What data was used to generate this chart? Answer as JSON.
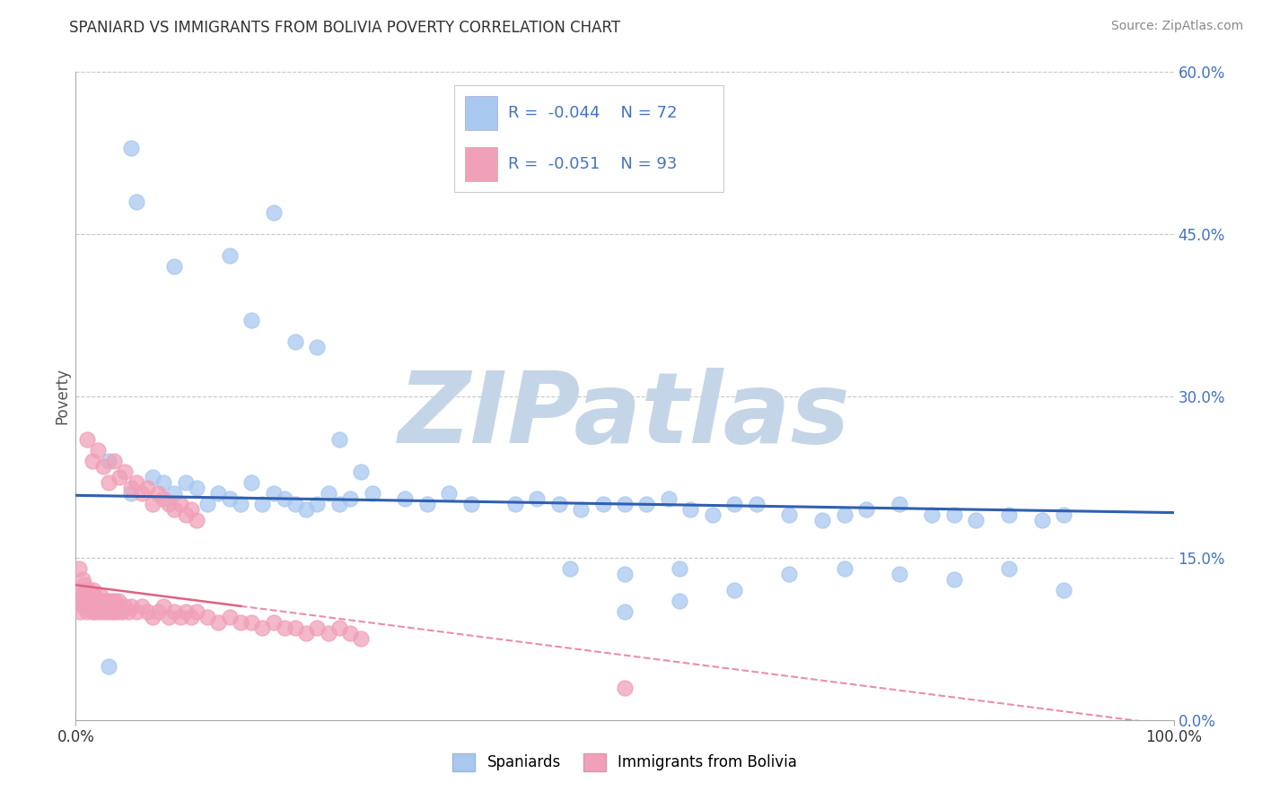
{
  "title": "SPANIARD VS IMMIGRANTS FROM BOLIVIA POVERTY CORRELATION CHART",
  "source": "Source: ZipAtlas.com",
  "ylabel": "Poverty",
  "xlim": [
    0,
    100
  ],
  "ylim": [
    0,
    60
  ],
  "yticks": [
    0,
    15,
    30,
    45,
    60
  ],
  "ytick_labels": [
    "0.0%",
    "15.0%",
    "30.0%",
    "45.0%",
    "60.0%"
  ],
  "xticks": [
    0,
    100
  ],
  "xtick_labels": [
    "0.0%",
    "100.0%"
  ],
  "background_color": "#ffffff",
  "grid_color": "#c8c8c8",
  "watermark_text": "ZIPatlas",
  "watermark_color": "#c5d5e8",
  "legend_label1": "Spaniards",
  "legend_label2": "Immigrants from Bolivia",
  "blue_color": "#a8c8f0",
  "pink_color": "#f0a0b8",
  "trend_blue": "#3060b0",
  "trend_pink": "#e06080",
  "blue_r": "-0.044",
  "blue_n": "72",
  "pink_r": "-0.051",
  "pink_n": "93",
  "blue_scatter_x": [
    5.0,
    5.5,
    9.0,
    14.0,
    16.0,
    18.0,
    20.0,
    22.0,
    24.0,
    26.0,
    3.0,
    5.0,
    7.0,
    8.0,
    9.0,
    10.0,
    11.0,
    12.0,
    13.0,
    14.0,
    15.0,
    16.0,
    17.0,
    18.0,
    19.0,
    20.0,
    21.0,
    22.0,
    23.0,
    24.0,
    25.0,
    27.0,
    30.0,
    32.0,
    34.0,
    36.0,
    40.0,
    42.0,
    44.0,
    46.0,
    48.0,
    50.0,
    52.0,
    54.0,
    56.0,
    58.0,
    60.0,
    62.0,
    65.0,
    68.0,
    70.0,
    72.0,
    75.0,
    78.0,
    80.0,
    82.0,
    85.0,
    88.0,
    90.0,
    45.0,
    50.0,
    55.0,
    60.0,
    65.0,
    70.0,
    75.0,
    80.0,
    85.0,
    90.0,
    50.0,
    55.0,
    3.0
  ],
  "blue_scatter_y": [
    53.0,
    48.0,
    42.0,
    43.0,
    37.0,
    47.0,
    35.0,
    34.5,
    26.0,
    23.0,
    24.0,
    21.0,
    22.5,
    22.0,
    21.0,
    22.0,
    21.5,
    20.0,
    21.0,
    20.5,
    20.0,
    22.0,
    20.0,
    21.0,
    20.5,
    20.0,
    19.5,
    20.0,
    21.0,
    20.0,
    20.5,
    21.0,
    20.5,
    20.0,
    21.0,
    20.0,
    20.0,
    20.5,
    20.0,
    19.5,
    20.0,
    20.0,
    20.0,
    20.5,
    19.5,
    19.0,
    20.0,
    20.0,
    19.0,
    18.5,
    19.0,
    19.5,
    20.0,
    19.0,
    19.0,
    18.5,
    19.0,
    18.5,
    19.0,
    14.0,
    13.5,
    14.0,
    12.0,
    13.5,
    14.0,
    13.5,
    13.0,
    14.0,
    12.0,
    10.0,
    11.0,
    5.0
  ],
  "pink_scatter_x": [
    0.1,
    0.2,
    0.3,
    0.4,
    0.5,
    0.6,
    0.7,
    0.8,
    0.9,
    1.0,
    1.1,
    1.2,
    1.3,
    1.4,
    1.5,
    1.6,
    1.7,
    1.8,
    1.9,
    2.0,
    2.1,
    2.2,
    2.3,
    2.4,
    2.5,
    2.6,
    2.7,
    2.8,
    2.9,
    3.0,
    3.1,
    3.2,
    3.3,
    3.4,
    3.5,
    3.6,
    3.7,
    3.8,
    3.9,
    4.0,
    4.2,
    4.5,
    4.8,
    5.0,
    5.5,
    6.0,
    6.5,
    7.0,
    7.5,
    8.0,
    8.5,
    9.0,
    9.5,
    10.0,
    10.5,
    11.0,
    12.0,
    13.0,
    14.0,
    15.0,
    16.0,
    17.0,
    18.0,
    19.0,
    20.0,
    21.0,
    22.0,
    23.0,
    24.0,
    25.0,
    26.0,
    1.0,
    1.5,
    2.0,
    2.5,
    3.0,
    3.5,
    4.0,
    4.5,
    5.0,
    5.5,
    6.0,
    6.5,
    7.0,
    7.5,
    8.0,
    8.5,
    9.0,
    9.5,
    10.0,
    10.5,
    11.0,
    50.0
  ],
  "pink_scatter_y": [
    12.0,
    11.0,
    14.0,
    10.0,
    11.5,
    13.0,
    10.5,
    12.5,
    11.0,
    10.0,
    12.0,
    11.5,
    10.5,
    11.0,
    10.0,
    12.0,
    11.5,
    10.0,
    11.0,
    10.5,
    11.0,
    10.0,
    11.5,
    10.5,
    11.0,
    10.0,
    11.0,
    10.5,
    10.0,
    11.0,
    10.5,
    10.0,
    11.0,
    10.5,
    10.0,
    11.0,
    10.5,
    10.0,
    11.0,
    10.5,
    10.0,
    10.5,
    10.0,
    10.5,
    10.0,
    10.5,
    10.0,
    9.5,
    10.0,
    10.5,
    9.5,
    10.0,
    9.5,
    10.0,
    9.5,
    10.0,
    9.5,
    9.0,
    9.5,
    9.0,
    9.0,
    8.5,
    9.0,
    8.5,
    8.5,
    8.0,
    8.5,
    8.0,
    8.5,
    8.0,
    7.5,
    26.0,
    24.0,
    25.0,
    23.5,
    22.0,
    24.0,
    22.5,
    23.0,
    21.5,
    22.0,
    21.0,
    21.5,
    20.0,
    21.0,
    20.5,
    20.0,
    19.5,
    20.0,
    19.0,
    19.5,
    18.5,
    3.0
  ]
}
